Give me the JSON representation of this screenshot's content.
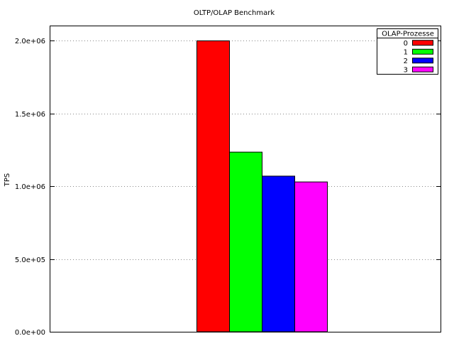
{
  "chart_data": {
    "type": "bar",
    "title": "OLTP/OLAP Benchmark",
    "xlabel": "",
    "ylabel": "TPS",
    "ylim": [
      0,
      2100000
    ],
    "yticks": [
      {
        "value": 0,
        "label": "0.0e+00"
      },
      {
        "value": 500000,
        "label": "5.0e+05"
      },
      {
        "value": 1000000,
        "label": "1.0e+06"
      },
      {
        "value": 1500000,
        "label": "1.5e+06"
      },
      {
        "value": 2000000,
        "label": "2.0e+06"
      }
    ],
    "grid": true,
    "legend": {
      "title": "OLAP-Prozesse",
      "placement": "top-right"
    },
    "series": [
      {
        "name": "0",
        "color": "#ff0000",
        "value": 2000000
      },
      {
        "name": "1",
        "color": "#00ff00",
        "value": 1235000
      },
      {
        "name": "2",
        "color": "#0000ff",
        "value": 1070000
      },
      {
        "name": "3",
        "color": "#ff00ff",
        "value": 1030000
      }
    ]
  }
}
